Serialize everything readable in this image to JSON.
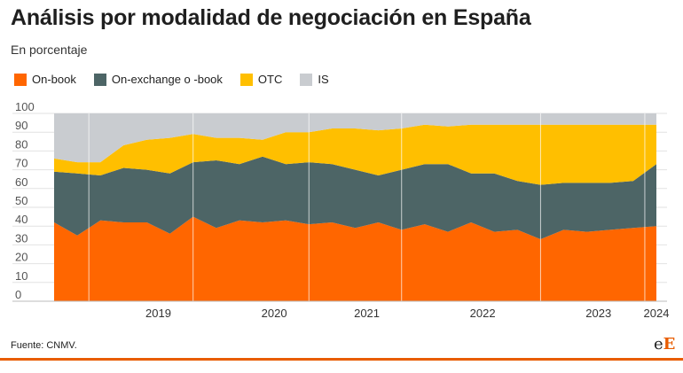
{
  "title": "Análisis por modalidad de negociación en España",
  "subtitle": "En porcentaje",
  "source": "Fuente: CNMV.",
  "logo": {
    "lower": "e",
    "upper": "E"
  },
  "colors": {
    "On-book": "#ff6600",
    "On-exchange o -book": "#4d6566",
    "OTC": "#ffbf00",
    "IS": "#c9ccd0",
    "accent": "#e85c00"
  },
  "chart_data": {
    "type": "area",
    "stacked": true,
    "ylim": [
      0,
      100
    ],
    "yticks": [
      0,
      10,
      20,
      30,
      40,
      50,
      60,
      70,
      80,
      90,
      100
    ],
    "grid": true,
    "legend_position": "top-left",
    "xticks": [
      {
        "label": "2019",
        "pos": 4.5
      },
      {
        "label": "2020",
        "pos": 9.5
      },
      {
        "label": "2021",
        "pos": 13.5
      },
      {
        "label": "2022",
        "pos": 18.5
      },
      {
        "label": "2023",
        "pos": 23.5
      },
      {
        "label": "2024",
        "pos": 26
      }
    ],
    "year_separators": [
      1.5,
      6,
      11,
      15,
      21,
      25.5
    ],
    "x": [
      0,
      1,
      2,
      3,
      4,
      5,
      6,
      7,
      8,
      9,
      10,
      11,
      12,
      13,
      14,
      15,
      16,
      17,
      18,
      19,
      20,
      21,
      22,
      23,
      24,
      25,
      26
    ],
    "series": [
      {
        "name": "On-book",
        "values": [
          42,
          35,
          43,
          42,
          42,
          36,
          45,
          39,
          43,
          42,
          43,
          41,
          42,
          39,
          42,
          38,
          41,
          37,
          42,
          37,
          38,
          33,
          38,
          37,
          38,
          39,
          40
        ]
      },
      {
        "name": "On-exchange o -book",
        "values": [
          27,
          33,
          24,
          29,
          28,
          32,
          29,
          36,
          30,
          35,
          30,
          33,
          31,
          31,
          25,
          32,
          32,
          36,
          26,
          31,
          26,
          29,
          25,
          26,
          25,
          25,
          33
        ]
      },
      {
        "name": "OTC",
        "values": [
          7,
          6,
          7,
          12,
          16,
          19,
          15,
          12,
          14,
          9,
          17,
          16,
          19,
          22,
          24,
          22,
          21,
          20,
          26,
          26,
          30,
          32,
          31,
          31,
          31,
          30,
          21
        ]
      },
      {
        "name": "IS",
        "values": [
          24,
          26,
          26,
          17,
          14,
          13,
          11,
          13,
          13,
          14,
          10,
          10,
          8,
          8,
          9,
          8,
          6,
          7,
          6,
          6,
          6,
          6,
          6,
          6,
          6,
          6,
          6
        ]
      }
    ]
  }
}
